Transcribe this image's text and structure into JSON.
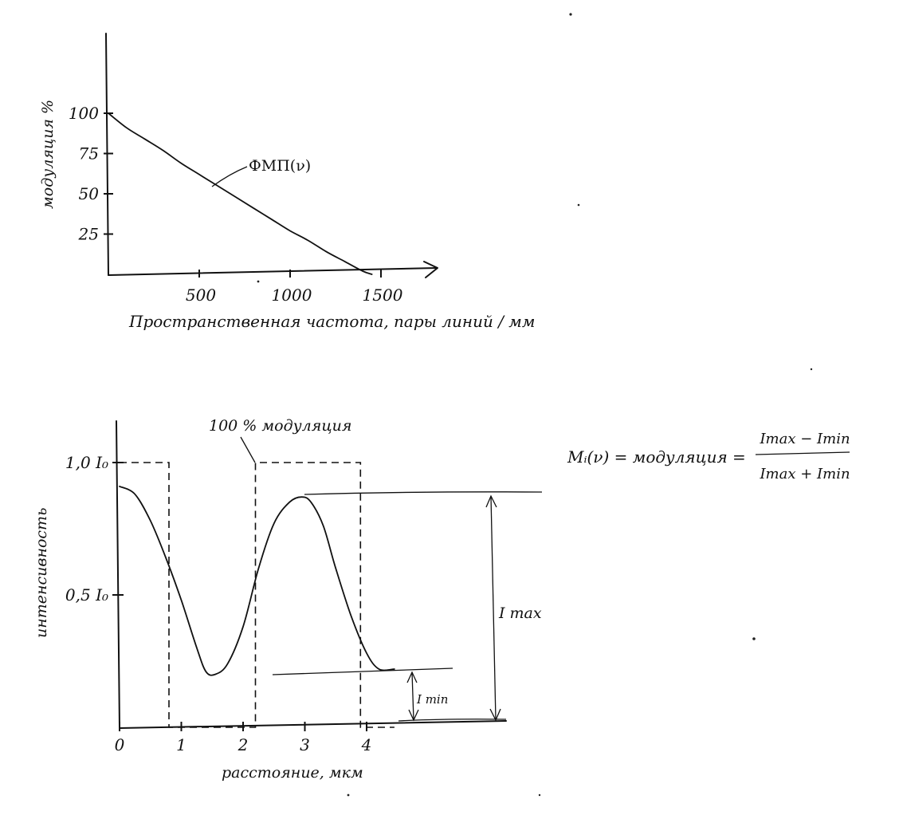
{
  "chart_data": [
    {
      "type": "line",
      "title": "",
      "ylabel": "модуляция %",
      "xlabel": "Пространственная частота, пары линий / мм",
      "yticks": [
        "25",
        "50",
        "75",
        "100"
      ],
      "xticks": [
        "500",
        "1000",
        "1500"
      ],
      "xlim": [
        0,
        1700
      ],
      "ylim": [
        0,
        120
      ],
      "series": [
        {
          "name": "ФМП(ν)",
          "x": [
            0,
            100,
            200,
            300,
            400,
            500,
            600,
            700,
            800,
            900,
            1000,
            1100,
            1200,
            1300,
            1400,
            1450
          ],
          "y": [
            100,
            91,
            84,
            77,
            69,
            62,
            55,
            48,
            41,
            34,
            27,
            21,
            14,
            8,
            2,
            0
          ]
        }
      ]
    },
    {
      "type": "line",
      "title": "100 % модуляция",
      "ylabel": "интенсивность",
      "xlabel": "расстояние, мкм",
      "yticks": [
        "0,5 I₀",
        "1,0 I₀"
      ],
      "yticks_values": [
        0.5,
        1.0
      ],
      "xticks": [
        "0",
        "1",
        "2",
        "3",
        "4"
      ],
      "xlim": [
        0,
        5.5
      ],
      "ylim": [
        0,
        1.2
      ],
      "series": [
        {
          "name": "",
          "x": [
            0,
            0.25,
            0.5,
            0.75,
            1.0,
            1.25,
            1.4,
            1.55,
            1.75,
            2.0,
            2.25,
            2.5,
            2.75,
            2.95,
            3.1,
            3.3,
            3.5,
            3.75,
            4.0,
            4.2,
            4.45
          ],
          "y": [
            0.91,
            0.88,
            0.78,
            0.64,
            0.48,
            0.3,
            0.21,
            0.2,
            0.24,
            0.38,
            0.6,
            0.77,
            0.85,
            0.87,
            0.85,
            0.76,
            0.6,
            0.42,
            0.28,
            0.22,
            0.22
          ]
        }
      ],
      "square_wave": {
        "x": [
          0,
          0.8,
          0.8,
          2.2,
          2.2,
          3.9,
          3.9,
          4.45
        ],
        "y": [
          1.0,
          1.0,
          0,
          0,
          1.0,
          1.0,
          0,
          0
        ]
      },
      "annotations": {
        "imax_label": "I max",
        "imin_label": "I min",
        "formula_lhs": "Mᵢ(ν) = модуляция =",
        "formula_num": "Imax − Imin",
        "formula_den": "Imax + Imin"
      }
    }
  ]
}
